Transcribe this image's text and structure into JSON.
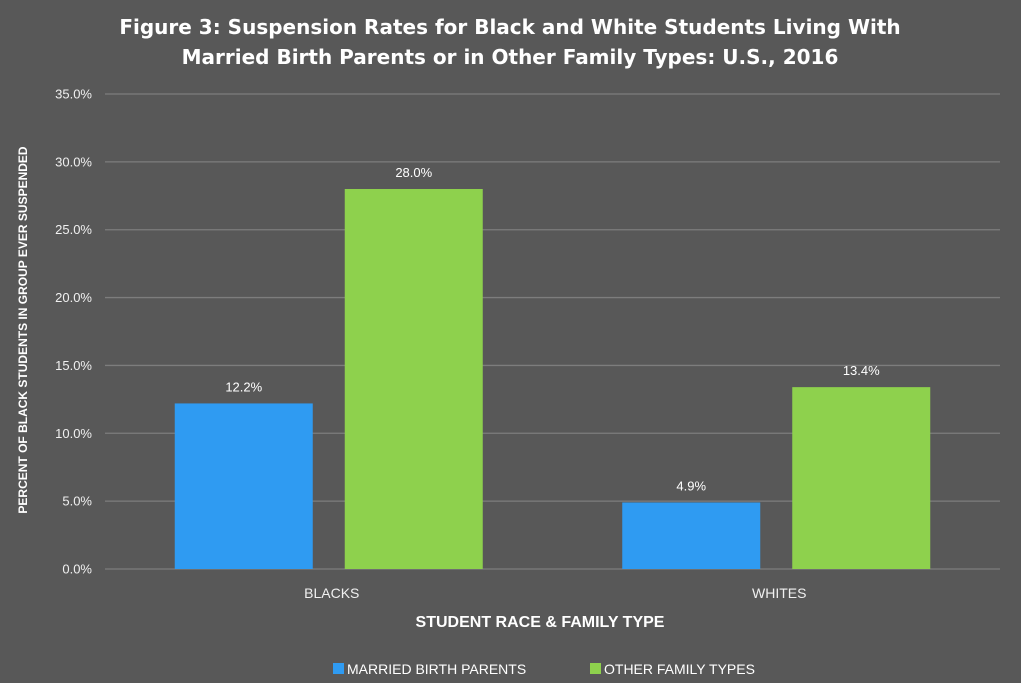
{
  "chart_data": {
    "type": "bar",
    "title_lines": [
      "Figure 3: Suspension Rates for Black and White Students Living With",
      "Married Birth Parents or in Other Family Types: U.S., 2016"
    ],
    "categories": [
      "BLACKS",
      "WHITES"
    ],
    "series": [
      {
        "name": "MARRIED BIRTH PARENTS",
        "values": [
          12.2,
          4.9
        ],
        "color": "#2f9bf2"
      },
      {
        "name": "OTHER FAMILY TYPES",
        "values": [
          28.0,
          13.4
        ],
        "color": "#8ed14d"
      }
    ],
    "data_labels": [
      [
        "12.2%",
        "4.9%"
      ],
      [
        "28.0%",
        "13.4%"
      ]
    ],
    "xlabel": "STUDENT RACE & FAMILY TYPE",
    "ylabel": "PERCENT OF BLACK STUDENTS IN GROUP EVER SUSPENDED",
    "ylim": [
      0,
      35
    ],
    "yticks": [
      0,
      5,
      10,
      15,
      20,
      25,
      30,
      35
    ],
    "ytick_labels": [
      "0.0%",
      "5.0%",
      "10.0%",
      "15.0%",
      "20.0%",
      "25.0%",
      "30.0%",
      "35.0%"
    ],
    "grid": true,
    "legend_position": "bottom-center"
  }
}
